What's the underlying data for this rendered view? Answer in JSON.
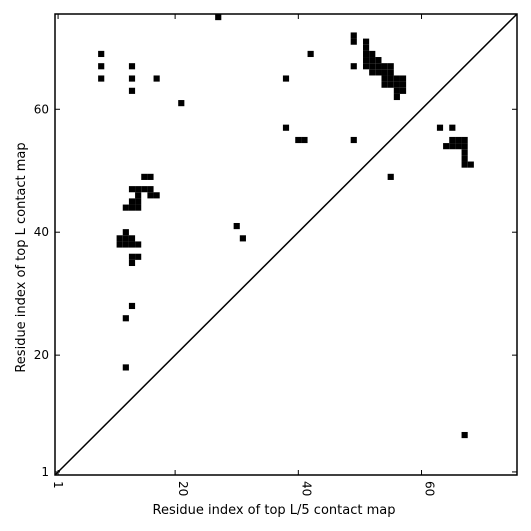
{
  "chart_data": {
    "type": "scatter",
    "title": "",
    "xlabel": "Residue index of top L/5 contact map",
    "ylabel": "Residue index of top L contact map",
    "xlim": [
      0.5,
      75.5
    ],
    "ylim": [
      0.5,
      75.5
    ],
    "xticks": [
      {
        "value": 1,
        "label": "1"
      },
      {
        "value": 20,
        "label": "20"
      },
      {
        "value": 40,
        "label": "40"
      },
      {
        "value": 60,
        "label": "60"
      }
    ],
    "yticks": [
      {
        "value": 1,
        "label": "1"
      },
      {
        "value": 20,
        "label": "20"
      },
      {
        "value": 40,
        "label": "40"
      },
      {
        "value": 60,
        "label": "60"
      }
    ],
    "grid": false,
    "legend": "none",
    "diagonal_line": true,
    "marker": "square",
    "marker_color": "#000000",
    "series": [
      {
        "points": [
          [
            8,
            69
          ],
          [
            8,
            67
          ],
          [
            8,
            65
          ],
          [
            13,
            67
          ],
          [
            13,
            65
          ],
          [
            13,
            63
          ],
          [
            17,
            65
          ],
          [
            21,
            61
          ],
          [
            27,
            75
          ],
          [
            38,
            65
          ],
          [
            38,
            57
          ],
          [
            40,
            55
          ],
          [
            41,
            55
          ],
          [
            42,
            69
          ],
          [
            49,
            72
          ],
          [
            49,
            71
          ],
          [
            49,
            67
          ],
          [
            49,
            55
          ],
          [
            51,
            71
          ],
          [
            51,
            70
          ],
          [
            51,
            69
          ],
          [
            51,
            68
          ],
          [
            51,
            67
          ],
          [
            52,
            69
          ],
          [
            52,
            68
          ],
          [
            52,
            67
          ],
          [
            52,
            66
          ],
          [
            53,
            68
          ],
          [
            53,
            67
          ],
          [
            53,
            66
          ],
          [
            54,
            67
          ],
          [
            54,
            66
          ],
          [
            54,
            65
          ],
          [
            54,
            64
          ],
          [
            55,
            67
          ],
          [
            55,
            66
          ],
          [
            55,
            65
          ],
          [
            55,
            64
          ],
          [
            56,
            65
          ],
          [
            56,
            64
          ],
          [
            56,
            63
          ],
          [
            56,
            62
          ],
          [
            57,
            65
          ],
          [
            57,
            64
          ],
          [
            57,
            63
          ],
          [
            63,
            57
          ],
          [
            65,
            57
          ],
          [
            64,
            54
          ],
          [
            65,
            55
          ],
          [
            65,
            54
          ],
          [
            66,
            55
          ],
          [
            66,
            54
          ],
          [
            67,
            55
          ],
          [
            67,
            54
          ],
          [
            67,
            53
          ],
          [
            67,
            52
          ],
          [
            67,
            51
          ],
          [
            68,
            51
          ],
          [
            55,
            49
          ],
          [
            15,
            49
          ],
          [
            16,
            49
          ],
          [
            13,
            47
          ],
          [
            14,
            47
          ],
          [
            15,
            47
          ],
          [
            16,
            47
          ],
          [
            14,
            46
          ],
          [
            16,
            46
          ],
          [
            17,
            46
          ],
          [
            13,
            45
          ],
          [
            14,
            45
          ],
          [
            12,
            44
          ],
          [
            13,
            44
          ],
          [
            14,
            44
          ],
          [
            30,
            41
          ],
          [
            31,
            39
          ],
          [
            12,
            40
          ],
          [
            11,
            39
          ],
          [
            12,
            39
          ],
          [
            13,
            39
          ],
          [
            11,
            38
          ],
          [
            12,
            38
          ],
          [
            13,
            38
          ],
          [
            14,
            38
          ],
          [
            13,
            36
          ],
          [
            14,
            36
          ],
          [
            13,
            35
          ],
          [
            13,
            28
          ],
          [
            12,
            26
          ],
          [
            12,
            18
          ],
          [
            67,
            7
          ]
        ]
      }
    ]
  }
}
